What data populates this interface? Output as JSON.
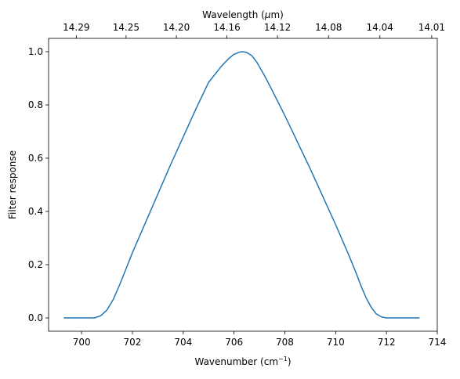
{
  "chart_data": {
    "type": "line",
    "title": "",
    "xlabel": "Wavenumber (cm",
    "xlabel_sup": "−1",
    "xlabel_end": ")",
    "ylabel": "Filter response",
    "top_xlabel": "Wavelength (",
    "top_xlabel_mu": "μ",
    "top_xlabel_end": "m)",
    "xlim": [
      698.7,
      714.0
    ],
    "ylim": [
      -0.05,
      1.05
    ],
    "x_ticks": [
      700,
      702,
      704,
      706,
      708,
      710,
      712,
      714
    ],
    "x_tick_labels": [
      "700",
      "702",
      "704",
      "706",
      "708",
      "710",
      "712",
      "714"
    ],
    "y_ticks": [
      0.0,
      0.2,
      0.4,
      0.6,
      0.8,
      1.0
    ],
    "y_tick_labels": [
      "0.0",
      "0.2",
      "0.4",
      "0.6",
      "0.8",
      "1.0"
    ],
    "top_ticks": [
      {
        "wavenumber": 699.79,
        "label": "14.29"
      },
      {
        "wavenumber": 701.75,
        "label": "14.25"
      },
      {
        "wavenumber": 703.73,
        "label": "14.20"
      },
      {
        "wavenumber": 705.72,
        "label": "14.16"
      },
      {
        "wavenumber": 707.71,
        "label": "14.12"
      },
      {
        "wavenumber": 709.72,
        "label": "14.08"
      },
      {
        "wavenumber": 711.74,
        "label": "14.04"
      },
      {
        "wavenumber": 713.78,
        "label": "14.01"
      }
    ],
    "grid": false,
    "series": [
      {
        "color": "#1f77b4",
        "x": [
          699.3,
          700.0,
          700.5,
          700.75,
          701.0,
          701.25,
          701.5,
          701.75,
          702.0,
          702.5,
          703.0,
          703.5,
          704.0,
          704.5,
          705.0,
          705.5,
          705.8,
          706.0,
          706.2,
          706.35,
          706.5,
          706.7,
          706.9,
          707.2,
          707.5,
          708.0,
          708.5,
          709.0,
          709.5,
          710.0,
          710.5,
          710.8,
          711.0,
          711.2,
          711.4,
          711.6,
          711.8,
          712.0,
          712.5,
          713.3
        ],
        "y": [
          0.0,
          0.0,
          0.0,
          0.008,
          0.03,
          0.07,
          0.125,
          0.185,
          0.245,
          0.355,
          0.465,
          0.575,
          0.68,
          0.785,
          0.885,
          0.945,
          0.975,
          0.99,
          0.998,
          1.0,
          0.997,
          0.985,
          0.96,
          0.91,
          0.855,
          0.76,
          0.66,
          0.56,
          0.455,
          0.35,
          0.24,
          0.17,
          0.12,
          0.075,
          0.04,
          0.015,
          0.004,
          0.0,
          0.0,
          0.0
        ]
      }
    ]
  }
}
